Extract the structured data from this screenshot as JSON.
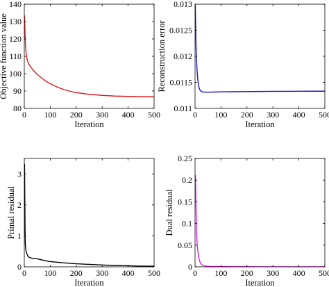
{
  "chart_data": [
    {
      "type": "line",
      "xlabel": "Iteration",
      "ylabel": "Objective function value",
      "xlim": [
        0,
        500
      ],
      "ylim": [
        80,
        140
      ],
      "xticks": [
        0,
        100,
        200,
        300,
        400,
        500
      ],
      "yticks": [
        80,
        90,
        100,
        110,
        120,
        130,
        140
      ],
      "ytick_labels": [
        "80",
        "90",
        "100",
        "110",
        "120",
        "130",
        "140"
      ],
      "grid": false,
      "series": [
        {
          "color": "#e3161b",
          "x": [
            1,
            2,
            3,
            5,
            8,
            12,
            16,
            20,
            25,
            30,
            40,
            50,
            60,
            70,
            80,
            90,
            100,
            125,
            150,
            175,
            200,
            250,
            300,
            350,
            400,
            450,
            500
          ],
          "y": [
            133.5,
            128,
            122,
            115,
            110.5,
            107.5,
            106,
            105,
            103.8,
            102.8,
            101,
            99.6,
            98.3,
            97.1,
            96,
            95,
            94.2,
            92.4,
            91,
            89.9,
            89.1,
            88.1,
            87.5,
            87.1,
            86.9,
            86.75,
            86.7
          ]
        }
      ]
    },
    {
      "type": "line",
      "xlabel": "Iteration",
      "ylabel": "Reconstruction error",
      "xlim": [
        0,
        500
      ],
      "ylim": [
        0.011,
        0.013
      ],
      "xticks": [
        0,
        100,
        200,
        300,
        400,
        500
      ],
      "yticks": [
        0.011,
        0.0115,
        0.012,
        0.0125,
        0.013
      ],
      "ytick_labels": [
        "0.011",
        "0.0115",
        "0.012",
        "0.0125",
        "0.013"
      ],
      "grid": false,
      "series": [
        {
          "color": "#1515c8",
          "x": [
            1,
            2,
            3,
            4,
            6,
            8,
            10,
            13,
            16,
            20,
            25,
            30,
            40,
            50,
            60,
            80,
            100,
            150,
            200,
            250,
            300,
            350,
            400,
            450,
            500
          ],
          "y": [
            0.01298,
            0.0127,
            0.0124,
            0.01215,
            0.0119,
            0.01172,
            0.01158,
            0.01146,
            0.01139,
            0.011345,
            0.011325,
            0.011315,
            0.011312,
            0.011312,
            0.011313,
            0.011315,
            0.011317,
            0.01132,
            0.011323,
            0.011325,
            0.011327,
            0.011328,
            0.011329,
            0.01133,
            0.01133
          ]
        }
      ]
    },
    {
      "type": "line",
      "xlabel": "Iteration",
      "ylabel": "Primal residual",
      "xlim": [
        0,
        500
      ],
      "ylim": [
        0,
        3.5
      ],
      "xticks": [
        0,
        100,
        200,
        300,
        400,
        500
      ],
      "yticks": [
        0,
        1,
        2,
        3
      ],
      "ytick_labels": [
        "0",
        "1",
        "2",
        "3"
      ],
      "grid": false,
      "series": [
        {
          "color": "#000000",
          "x": [
            1,
            2,
            3,
            4,
            5,
            7,
            10,
            15,
            20,
            30,
            40,
            50,
            60,
            80,
            100,
            150,
            200,
            250,
            300,
            350,
            400,
            450,
            500
          ],
          "y": [
            3.33,
            2.2,
            1.2,
            0.72,
            0.62,
            0.5,
            0.42,
            0.33,
            0.3,
            0.28,
            0.27,
            0.26,
            0.24,
            0.2,
            0.17,
            0.13,
            0.1,
            0.08,
            0.06,
            0.045,
            0.035,
            0.025,
            0.02
          ]
        }
      ]
    },
    {
      "type": "line",
      "xlabel": "Iteration",
      "ylabel": "Dual residual",
      "xlim": [
        0,
        500
      ],
      "ylim": [
        0,
        0.25
      ],
      "xticks": [
        0,
        100,
        200,
        300,
        400,
        500
      ],
      "yticks": [
        0,
        0.05,
        0.1,
        0.15,
        0.2,
        0.25
      ],
      "ytick_labels": [
        "0",
        "0.05",
        "0.1",
        "0.15",
        "0.2",
        "0.25"
      ],
      "grid": false,
      "series": [
        {
          "color": "#e619e6",
          "x": [
            1,
            2,
            3,
            4,
            5,
            6,
            8,
            10,
            12,
            15,
            18,
            22,
            26,
            30,
            35,
            40,
            50,
            60,
            80,
            100,
            150,
            200,
            300,
            400,
            500
          ],
          "y": [
            0.212,
            0.2,
            0.165,
            0.13,
            0.1,
            0.08,
            0.055,
            0.04,
            0.03,
            0.02,
            0.013,
            0.008,
            0.005,
            0.0035,
            0.0025,
            0.0018,
            0.0012,
            0.0009,
            0.0006,
            0.0005,
            0.0003,
            0.0002,
            0.0001,
            0.0001,
            0.0001
          ]
        }
      ]
    }
  ]
}
